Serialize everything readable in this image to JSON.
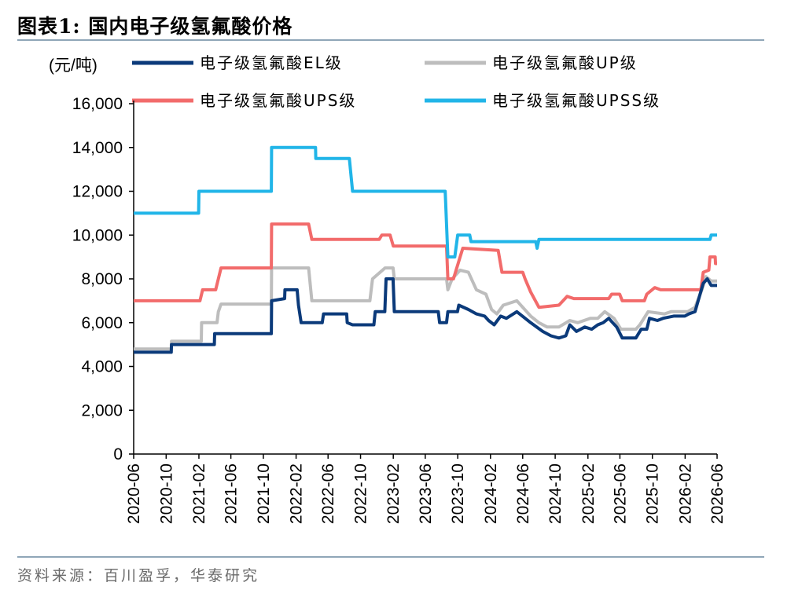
{
  "figure": {
    "title": "图表1:   国内电子级氢氟酸价格",
    "source": "资料来源：百川盈孚，华泰研究"
  },
  "chart_data": {
    "type": "line",
    "ylabel": "(元/吨)",
    "ylim": [
      0,
      16000
    ],
    "yticks": [
      0,
      2000,
      4000,
      6000,
      8000,
      10000,
      12000,
      14000,
      16000
    ],
    "ytick_labels": [
      "0",
      "2,000",
      "4,000",
      "6,000",
      "8,000",
      "10,000",
      "12,000",
      "14,000",
      "16,000"
    ],
    "x_start": "2020-06",
    "x_end": "2026-06",
    "xticks": [
      "2020-06",
      "2020-10",
      "2021-02",
      "2021-06",
      "2021-10",
      "2022-02",
      "2022-06",
      "2022-10",
      "2023-02",
      "2023-06",
      "2023-10",
      "2024-02",
      "2024-06",
      "2024-10",
      "2025-02",
      "2025-06",
      "2025-10",
      "2026-02",
      "2026-06"
    ],
    "series": [
      {
        "name": "电子级氢氟酸EL级",
        "color": "#0b3a7a",
        "points": [
          [
            "2020-06-01",
            4650
          ],
          [
            "2020-10-20",
            4650
          ],
          [
            "2020-10-21",
            5000
          ],
          [
            "2021-03-31",
            5000
          ],
          [
            "2021-04-01",
            5500
          ],
          [
            "2021-10-31",
            5500
          ],
          [
            "2021-11-01",
            7000
          ],
          [
            "2021-12-20",
            7100
          ],
          [
            "2021-12-21",
            7500
          ],
          [
            "2022-02-05",
            7500
          ],
          [
            "2022-02-10",
            6800
          ],
          [
            "2022-02-20",
            6000
          ],
          [
            "2022-05-10",
            6000
          ],
          [
            "2022-05-15",
            6400
          ],
          [
            "2022-08-10",
            6400
          ],
          [
            "2022-08-12",
            6000
          ],
          [
            "2022-09-01",
            5900
          ],
          [
            "2022-11-20",
            5900
          ],
          [
            "2022-11-25",
            6500
          ],
          [
            "2022-12-31",
            6500
          ],
          [
            "2023-01-05",
            8000
          ],
          [
            "2023-01-31",
            8000
          ],
          [
            "2023-02-05",
            6500
          ],
          [
            "2023-07-20",
            6500
          ],
          [
            "2023-07-25",
            6000
          ],
          [
            "2023-08-20",
            6000
          ],
          [
            "2023-08-25",
            6500
          ],
          [
            "2023-09-30",
            6500
          ],
          [
            "2023-10-05",
            6800
          ],
          [
            "2023-11-10",
            6600
          ],
          [
            "2023-12-10",
            6400
          ],
          [
            "2024-01-10",
            6300
          ],
          [
            "2024-01-25",
            6100
          ],
          [
            "2024-02-15",
            5900
          ],
          [
            "2024-03-10",
            6300
          ],
          [
            "2024-04-01",
            6200
          ],
          [
            "2024-05-10",
            6500
          ],
          [
            "2024-05-31",
            6300
          ],
          [
            "2024-07-01",
            6000
          ],
          [
            "2024-08-15",
            5600
          ],
          [
            "2024-09-15",
            5400
          ],
          [
            "2024-10-15",
            5300
          ],
          [
            "2024-11-10",
            5400
          ],
          [
            "2024-11-25",
            5900
          ],
          [
            "2024-12-20",
            5600
          ],
          [
            "2025-01-20",
            5800
          ],
          [
            "2025-02-15",
            5700
          ],
          [
            "2025-03-10",
            5900
          ],
          [
            "2025-03-30",
            6000
          ],
          [
            "2025-04-20",
            6200
          ],
          [
            "2025-05-05",
            6000
          ],
          [
            "2025-05-20",
            5800
          ],
          [
            "2025-06-10",
            5300
          ],
          [
            "2025-07-31",
            5300
          ],
          [
            "2025-08-20",
            5700
          ],
          [
            "2025-09-10",
            5700
          ],
          [
            "2025-09-20",
            6200
          ],
          [
            "2025-10-20",
            6100
          ],
          [
            "2025-11-10",
            6200
          ],
          [
            "2025-12-20",
            6300
          ],
          [
            "2026-01-31",
            6300
          ],
          [
            "2026-02-15",
            6400
          ],
          [
            "2026-03-10",
            6500
          ],
          [
            "2026-04-10",
            7800
          ],
          [
            "2026-04-25",
            8000
          ],
          [
            "2026-05-10",
            7700
          ],
          [
            "2026-06-01",
            7700
          ]
        ]
      },
      {
        "name": "电子级氢氟酸UP级",
        "color": "#bdbdbd",
        "points": [
          [
            "2020-06-01",
            4800
          ],
          [
            "2020-10-20",
            4800
          ],
          [
            "2020-10-21",
            5150
          ],
          [
            "2021-02-10",
            5150
          ],
          [
            "2021-02-11",
            6000
          ],
          [
            "2021-04-10",
            6000
          ],
          [
            "2021-04-15",
            6500
          ],
          [
            "2021-04-25",
            6850
          ],
          [
            "2021-10-31",
            6850
          ],
          [
            "2021-11-01",
            8500
          ],
          [
            "2022-03-20",
            8500
          ],
          [
            "2022-04-01",
            7000
          ],
          [
            "2022-11-05",
            7000
          ],
          [
            "2022-11-15",
            8000
          ],
          [
            "2023-01-01",
            8500
          ],
          [
            "2023-01-31",
            8500
          ],
          [
            "2023-02-05",
            8000
          ],
          [
            "2023-08-20",
            8000
          ],
          [
            "2023-08-25",
            7500
          ],
          [
            "2023-09-10",
            8000
          ],
          [
            "2023-10-10",
            8400
          ],
          [
            "2023-11-10",
            8300
          ],
          [
            "2023-12-10",
            7500
          ],
          [
            "2024-01-15",
            7300
          ],
          [
            "2024-02-05",
            6600
          ],
          [
            "2024-02-25",
            6400
          ],
          [
            "2024-03-20",
            6800
          ],
          [
            "2024-05-10",
            7000
          ],
          [
            "2024-06-01",
            6700
          ],
          [
            "2024-07-01",
            6300
          ],
          [
            "2024-08-01",
            6000
          ],
          [
            "2024-09-01",
            5800
          ],
          [
            "2024-10-15",
            5800
          ],
          [
            "2024-11-25",
            6100
          ],
          [
            "2024-12-25",
            6000
          ],
          [
            "2025-02-10",
            6200
          ],
          [
            "2025-03-10",
            6200
          ],
          [
            "2025-04-05",
            6500
          ],
          [
            "2025-05-10",
            6200
          ],
          [
            "2025-06-05",
            5700
          ],
          [
            "2025-07-31",
            5700
          ],
          [
            "2025-08-15",
            5900
          ],
          [
            "2025-09-15",
            6500
          ],
          [
            "2025-11-15",
            6400
          ],
          [
            "2025-12-10",
            6500
          ],
          [
            "2026-02-10",
            6500
          ],
          [
            "2026-03-10",
            6700
          ],
          [
            "2026-04-05",
            7500
          ],
          [
            "2026-04-20",
            8100
          ],
          [
            "2026-05-10",
            7900
          ],
          [
            "2026-06-01",
            7900
          ]
        ]
      },
      {
        "name": "电子级氢氟酸UPS级",
        "color": "#f26b6b",
        "points": [
          [
            "2020-06-01",
            7000
          ],
          [
            "2021-02-05",
            7000
          ],
          [
            "2021-02-15",
            7500
          ],
          [
            "2021-04-05",
            7500
          ],
          [
            "2021-04-15",
            8000
          ],
          [
            "2021-04-25",
            8500
          ],
          [
            "2021-10-31",
            8500
          ],
          [
            "2021-11-01",
            10500
          ],
          [
            "2022-03-20",
            10500
          ],
          [
            "2022-04-01",
            9800
          ],
          [
            "2022-12-10",
            9800
          ],
          [
            "2022-12-20",
            10000
          ],
          [
            "2023-01-20",
            10000
          ],
          [
            "2023-02-01",
            9500
          ],
          [
            "2023-08-20",
            9500
          ],
          [
            "2023-08-25",
            8000
          ],
          [
            "2023-09-15",
            8000
          ],
          [
            "2023-10-10",
            9000
          ],
          [
            "2023-10-20",
            9400
          ],
          [
            "2024-03-01",
            9300
          ],
          [
            "2024-03-15",
            8300
          ],
          [
            "2024-06-01",
            8300
          ],
          [
            "2024-06-10",
            8000
          ],
          [
            "2024-07-01",
            7400
          ],
          [
            "2024-08-01",
            6700
          ],
          [
            "2024-10-15",
            6800
          ],
          [
            "2024-11-15",
            7200
          ],
          [
            "2024-12-10",
            7100
          ],
          [
            "2025-04-20",
            7100
          ],
          [
            "2025-05-01",
            7300
          ],
          [
            "2025-05-31",
            7300
          ],
          [
            "2025-06-10",
            7000
          ],
          [
            "2025-09-01",
            7000
          ],
          [
            "2025-09-10",
            7300
          ],
          [
            "2025-10-10",
            7600
          ],
          [
            "2025-11-01",
            7500
          ],
          [
            "2026-04-01",
            7500
          ],
          [
            "2026-04-10",
            8300
          ],
          [
            "2026-05-01",
            8400
          ],
          [
            "2026-05-05",
            9000
          ],
          [
            "2026-05-25",
            9000
          ],
          [
            "2026-05-26",
            8700
          ],
          [
            "2026-06-01",
            8700
          ]
        ]
      },
      {
        "name": "电子级氢氟酸UPSS级",
        "color": "#21b5e8",
        "points": [
          [
            "2020-06-01",
            11000
          ],
          [
            "2021-01-31",
            11000
          ],
          [
            "2021-02-01",
            12000
          ],
          [
            "2021-10-31",
            12000
          ],
          [
            "2021-11-01",
            14000
          ],
          [
            "2022-04-15",
            14000
          ],
          [
            "2022-04-16",
            13500
          ],
          [
            "2022-08-20",
            13500
          ],
          [
            "2022-09-01",
            12000
          ],
          [
            "2023-08-15",
            12000
          ],
          [
            "2023-08-25",
            9000
          ],
          [
            "2023-09-20",
            9000
          ],
          [
            "2023-10-01",
            10000
          ],
          [
            "2023-11-15",
            10000
          ],
          [
            "2023-11-20",
            9700
          ],
          [
            "2024-07-20",
            9700
          ],
          [
            "2024-07-25",
            9400
          ],
          [
            "2024-08-01",
            9800
          ],
          [
            "2026-05-05",
            9800
          ],
          [
            "2026-05-10",
            10000
          ],
          [
            "2026-06-01",
            10000
          ]
        ]
      }
    ],
    "legend_order": [
      0,
      1,
      2,
      3
    ],
    "legend_position": "top"
  }
}
